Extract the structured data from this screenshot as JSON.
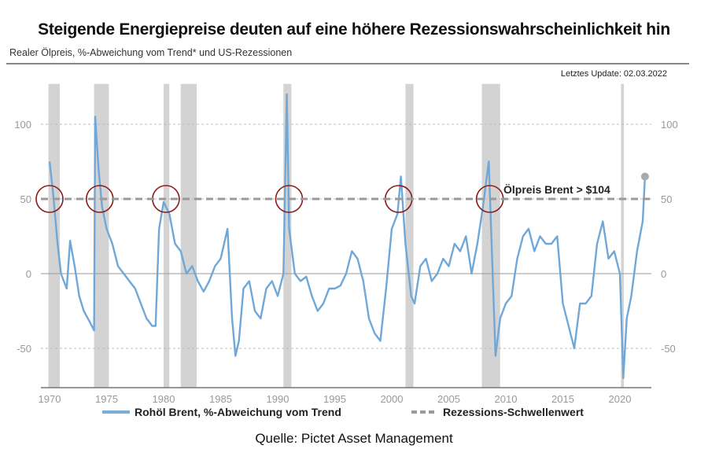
{
  "title": "Steigende Energiepreise deuten auf eine höhere Rezessionswahrscheinlichkeit hin",
  "subtitle": "Realer Ölpreis, %-Abweichung vom Trend* und US-Rezessionen",
  "update": "Letztes Update: 02.03.2022",
  "source": "Quelle: Pictet Asset Management",
  "chart_data": {
    "type": "line",
    "title": "Steigende Energiepreise deuten auf eine höhere Rezessionswahrscheinlichkeit hin",
    "xlabel": "",
    "ylabel": "",
    "xlim": [
      1969.2,
      2022.7
    ],
    "ylim": [
      -77,
      127
    ],
    "x_ticks": [
      1970,
      1975,
      1980,
      1985,
      1990,
      1995,
      2000,
      2005,
      2010,
      2015,
      2020
    ],
    "x_tick_labels": [
      "1970",
      "1975",
      "1980",
      "1985",
      "1990",
      "1995",
      "2000",
      "2005",
      "2010",
      "2015",
      "2020"
    ],
    "y_ticks": [
      100,
      50,
      0,
      -50
    ],
    "y_tick_labels": [
      "100",
      "50",
      "0",
      "-50"
    ],
    "grid": "horizontal-dashed",
    "threshold": {
      "value": 50,
      "label": "Rezessions-Schwellenwert",
      "color": "#9a9a9a"
    },
    "annotation": "Ölpreis Brent > $104",
    "legend_position": "bottom",
    "colors": {
      "series": "#6fa8d8",
      "recession": "#d3d3d3",
      "circle": "#8b1a1a",
      "endpoint": "#aaaaaa"
    },
    "recessions": [
      [
        1969.9,
        1970.9
      ],
      [
        1973.9,
        1975.2
      ],
      [
        1980.0,
        1980.5
      ],
      [
        1981.5,
        1982.9
      ],
      [
        1990.5,
        1991.2
      ],
      [
        2001.2,
        2001.9
      ],
      [
        2007.9,
        2009.5
      ],
      [
        2020.1,
        2020.35
      ]
    ],
    "highlight_crossings": [
      1970.0,
      1974.4,
      1980.2,
      1991.0,
      2000.6,
      2008.6
    ],
    "series": [
      {
        "name": "Rohöl Brent, %-Abweichung vom Trend",
        "x": [
          1970.0,
          1970.3,
          1970.7,
          1971.0,
          1971.5,
          1971.8,
          1972.2,
          1972.6,
          1973.0,
          1973.5,
          1973.9,
          1974.0,
          1974.3,
          1974.6,
          1975.0,
          1975.5,
          1976.0,
          1976.5,
          1977.0,
          1977.5,
          1978.0,
          1978.5,
          1979.0,
          1979.3,
          1979.6,
          1980.0,
          1980.5,
          1981.0,
          1981.5,
          1982.0,
          1982.5,
          1983.0,
          1983.5,
          1984.0,
          1984.5,
          1985.0,
          1985.6,
          1986.0,
          1986.3,
          1986.6,
          1987.0,
          1987.5,
          1988.0,
          1988.5,
          1989.0,
          1989.5,
          1990.0,
          1990.5,
          1990.8,
          1991.0,
          1991.5,
          1992.0,
          1992.5,
          1993.0,
          1993.5,
          1994.0,
          1994.5,
          1995.0,
          1995.5,
          1996.0,
          1996.5,
          1997.0,
          1997.5,
          1998.0,
          1998.5,
          1999.0,
          1999.5,
          2000.0,
          2000.5,
          2000.8,
          2001.2,
          2001.7,
          2002.0,
          2002.5,
          2003.0,
          2003.5,
          2004.0,
          2004.5,
          2005.0,
          2005.5,
          2006.0,
          2006.5,
          2007.0,
          2007.5,
          2008.0,
          2008.5,
          2008.8,
          2009.1,
          2009.5,
          2010.0,
          2010.5,
          2011.0,
          2011.5,
          2012.0,
          2012.5,
          2013.0,
          2013.5,
          2014.0,
          2014.5,
          2015.0,
          2015.5,
          2016.0,
          2016.5,
          2017.0,
          2017.5,
          2018.0,
          2018.5,
          2019.0,
          2019.5,
          2020.0,
          2020.3,
          2020.6,
          2021.0,
          2021.5,
          2022.0,
          2022.2
        ],
        "y": [
          75,
          55,
          20,
          0,
          -10,
          22,
          5,
          -15,
          -25,
          -32,
          -38,
          105,
          70,
          45,
          30,
          20,
          5,
          0,
          -5,
          -10,
          -20,
          -30,
          -35,
          -35,
          30,
          48,
          40,
          20,
          15,
          0,
          5,
          -5,
          -12,
          -5,
          5,
          10,
          30,
          -30,
          -55,
          -45,
          -10,
          -5,
          -25,
          -30,
          -10,
          -5,
          -15,
          0,
          120,
          30,
          0,
          -5,
          -2,
          -15,
          -25,
          -20,
          -10,
          -10,
          -8,
          0,
          15,
          10,
          -5,
          -30,
          -40,
          -45,
          -10,
          30,
          40,
          65,
          20,
          -15,
          -20,
          5,
          10,
          -5,
          0,
          10,
          5,
          20,
          15,
          25,
          0,
          20,
          45,
          75,
          10,
          -55,
          -30,
          -20,
          -15,
          10,
          25,
          30,
          15,
          25,
          20,
          20,
          25,
          -20,
          -35,
          -50,
          -20,
          -20,
          -15,
          20,
          35,
          10,
          15,
          0,
          -70,
          -30,
          -15,
          15,
          35,
          65
        ]
      }
    ]
  }
}
